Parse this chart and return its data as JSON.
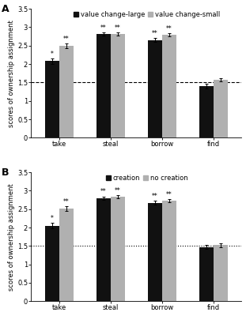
{
  "panel_A": {
    "label": "A",
    "legend_labels": [
      "value change-large",
      "value change-small"
    ],
    "categories": [
      "take",
      "steal",
      "borrow",
      "find"
    ],
    "bar1_values": [
      2.08,
      2.82,
      2.65,
      1.4
    ],
    "bar2_values": [
      2.5,
      2.82,
      2.8,
      1.57
    ],
    "bar1_errors": [
      0.07,
      0.04,
      0.05,
      0.06
    ],
    "bar2_errors": [
      0.06,
      0.04,
      0.04,
      0.05
    ],
    "bar1_color": "#111111",
    "bar2_color": "#b0b0b0",
    "annotations_bar1": [
      "*",
      "**",
      "**",
      ""
    ],
    "annotations_bar2": [
      "**",
      "**",
      "**",
      ""
    ],
    "dashed_line_y": 1.5,
    "dashed_style": "--",
    "ylim": [
      0,
      3.5
    ],
    "yticks": [
      0,
      0.5,
      1.0,
      1.5,
      2.0,
      2.5,
      3.0,
      3.5
    ],
    "ylabel": "scores of ownership assignment"
  },
  "panel_B": {
    "label": "B",
    "legend_labels": [
      "creation",
      "no creation"
    ],
    "categories": [
      "take",
      "steal",
      "borrow",
      "find"
    ],
    "bar1_values": [
      2.05,
      2.8,
      2.67,
      1.47
    ],
    "bar2_values": [
      2.52,
      2.83,
      2.73,
      1.52
    ],
    "bar1_errors": [
      0.07,
      0.04,
      0.05,
      0.05
    ],
    "bar2_errors": [
      0.06,
      0.04,
      0.04,
      0.05
    ],
    "bar1_color": "#111111",
    "bar2_color": "#b0b0b0",
    "annotations_bar1": [
      "*",
      "**",
      "**",
      ""
    ],
    "annotations_bar2": [
      "**",
      "**",
      "**",
      ""
    ],
    "dashed_line_y": 1.5,
    "dashed_style": ":",
    "ylim": [
      0,
      3.5
    ],
    "yticks": [
      0,
      0.5,
      1.0,
      1.5,
      2.0,
      2.5,
      3.0,
      3.5
    ],
    "ylabel": "scores of ownership assignment"
  },
  "bar_width": 0.28,
  "figure_width": 3.11,
  "figure_height": 4.0,
  "dpi": 100,
  "background_color": "#ffffff",
  "annotation_fontsize": 5.5,
  "label_fontsize": 6.0,
  "tick_fontsize": 6.0,
  "legend_fontsize": 6.0,
  "panel_label_fontsize": 9
}
